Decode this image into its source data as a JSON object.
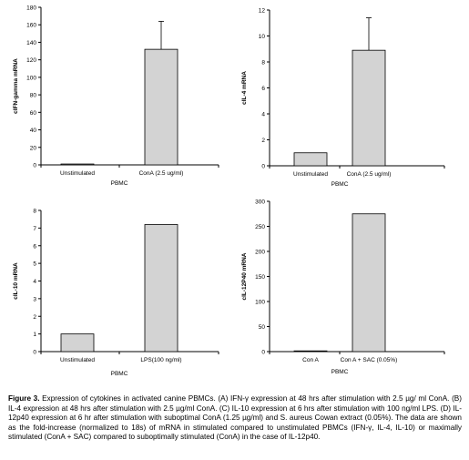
{
  "chart_data": [
    {
      "type": "bar",
      "categories": [
        "Unstimulated",
        "ConA (2.5 ug/ml)"
      ],
      "values": [
        1,
        132
      ],
      "error": [
        0,
        32
      ],
      "ylabel": "cIFN-gamma mRNA",
      "xlabel": "PBMC",
      "ylim": [
        0,
        180
      ],
      "yticks": [
        0,
        20,
        40,
        60,
        80,
        100,
        120,
        140,
        160,
        180
      ],
      "bar_color": "#d3d3d3"
    },
    {
      "type": "bar",
      "categories": [
        "Unstimulated",
        "ConA (2.5 ug/ml)"
      ],
      "values": [
        1,
        8.9
      ],
      "error": [
        0,
        2.5
      ],
      "ylabel": "cIL-4 mRNA",
      "xlabel": "PBMC",
      "ylim": [
        0,
        12
      ],
      "yticks": [
        0,
        2,
        4,
        6,
        8,
        10,
        12
      ],
      "bar_color": "#d3d3d3"
    },
    {
      "type": "bar",
      "categories": [
        "Unstimulated",
        "LPS(100 ng/ml)"
      ],
      "values": [
        1,
        7.2
      ],
      "error": [
        0,
        0
      ],
      "ylabel": "cIL-10 mRNA",
      "xlabel": "PBMC",
      "ylim": [
        0,
        8
      ],
      "yticks": [
        0,
        1,
        2,
        3,
        4,
        5,
        6,
        7,
        8
      ],
      "bar_color": "#d3d3d3"
    },
    {
      "type": "bar",
      "categories": [
        "Con A",
        "Con A + SAC (0.05%)"
      ],
      "values": [
        1,
        275
      ],
      "error": [
        0,
        0
      ],
      "ylabel": "cIL-12P40 mRNA",
      "xlabel": "PBMC",
      "ylim": [
        0,
        300
      ],
      "yticks": [
        0,
        50,
        100,
        150,
        200,
        250,
        300
      ],
      "bar_color": "#d3d3d3"
    }
  ],
  "caption": {
    "label": "Figure 3.",
    "text": " Expression of cytokines in activated canine PBMCs. (A) IFN-γ expression at 48 hrs after stimulation with 2.5 µg/ ml ConA. (B) IL-4 expression at 48 hrs after stimulation with 2.5 µg/ml ConA. (C) IL-10 expression at 6 hrs after stimulation with 100 ng/ml LPS. (D) IL-12p40 expression at 6 hr after stimulation with suboptimal ConA (1.25 µg/ml) and S. aureus Cowan extract (0.05%). The data are shown as the fold-increase (normalized to 18s) of mRNA in stimulated compared to unstimulated PBMCs (IFN-γ, IL-4, IL-10) or maximally stimulated (ConA + SAC) compared to suboptimally stimulated (ConA) in the case of IL-12p40."
  }
}
